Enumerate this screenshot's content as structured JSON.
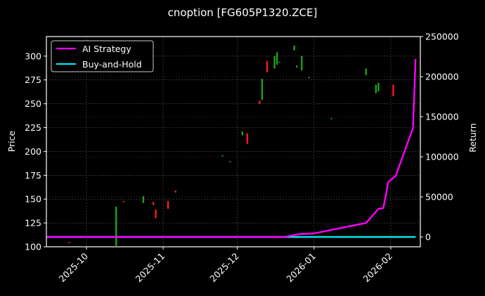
{
  "title": "cnoption [FG605P1320.ZCE]",
  "colors": {
    "background": "#000000",
    "ai_strategy": "#ff00ff",
    "buy_and_hold": "#00e5ee",
    "candle_up": "#1fa01f",
    "candle_down": "#ff1a1a",
    "grid": "#555555",
    "axis": "#ffffff"
  },
  "legend": {
    "items": [
      {
        "label": "AI Strategy",
        "color": "#ff00ff"
      },
      {
        "label": "Buy-and-Hold",
        "color": "#00e5ee"
      }
    ]
  },
  "chart_data": {
    "type": "line",
    "title": "cnoption [FG605P1320.ZCE]",
    "xlabel": "",
    "ylabel": "Price",
    "y2label": "Return",
    "xlim": [
      "2025-09-15",
      "2026-02-11"
    ],
    "ylim": [
      100,
      320
    ],
    "y2lim": [
      -12000,
      250000
    ],
    "grid": true,
    "legend_position": "upper left",
    "x_ticks": [
      "2025-10",
      "2025-11",
      "2025-12",
      "2026-01",
      "2026-02"
    ],
    "y_ticks": [
      100,
      125,
      150,
      175,
      200,
      225,
      250,
      275,
      300
    ],
    "y2_ticks": [
      0,
      50000,
      100000,
      150000,
      200000,
      250000
    ],
    "candles": [
      {
        "date": "2025-09-24",
        "open": 105,
        "close": 104,
        "high": 105,
        "low": 104
      },
      {
        "date": "2025-10-13",
        "open": 101,
        "close": 142,
        "high": 142,
        "low": 101
      },
      {
        "date": "2025-10-16",
        "open": 148,
        "close": 147,
        "high": 148,
        "low": 147
      },
      {
        "date": "2025-10-24",
        "open": 146,
        "close": 153,
        "high": 153,
        "low": 146
      },
      {
        "date": "2025-10-28",
        "open": 147,
        "close": 144,
        "high": 147,
        "low": 144
      },
      {
        "date": "2025-10-29",
        "open": 139,
        "close": 130,
        "high": 139,
        "low": 130
      },
      {
        "date": "2025-11-03",
        "open": 148,
        "close": 140,
        "high": 148,
        "low": 140
      },
      {
        "date": "2025-11-06",
        "open": 159,
        "close": 157,
        "high": 159,
        "low": 157
      },
      {
        "date": "2025-11-25",
        "open": 196,
        "close": 196,
        "high": 196,
        "low": 196
      },
      {
        "date": "2025-11-28",
        "open": 190,
        "close": 190,
        "high": 190,
        "low": 190
      },
      {
        "date": "2025-12-03",
        "open": 217,
        "close": 221,
        "high": 221,
        "low": 217
      },
      {
        "date": "2025-12-05",
        "open": 219,
        "close": 208,
        "high": 219,
        "low": 208
      },
      {
        "date": "2025-12-10",
        "open": 253,
        "close": 250,
        "high": 253,
        "low": 250
      },
      {
        "date": "2025-12-11",
        "open": 254,
        "close": 276,
        "high": 276,
        "low": 254
      },
      {
        "date": "2025-12-13",
        "open": 295,
        "close": 283,
        "high": 295,
        "low": 283
      },
      {
        "date": "2025-12-16",
        "open": 287,
        "close": 300,
        "high": 300,
        "low": 287
      },
      {
        "date": "2025-12-17",
        "open": 291,
        "close": 304,
        "high": 304,
        "low": 291
      },
      {
        "date": "2025-12-18",
        "open": 293,
        "close": 294,
        "high": 294,
        "low": 293
      },
      {
        "date": "2025-12-24",
        "open": 306,
        "close": 311,
        "high": 311,
        "low": 306
      },
      {
        "date": "2025-12-25",
        "open": 288,
        "close": 290,
        "high": 290,
        "low": 288
      },
      {
        "date": "2025-12-27",
        "open": 285,
        "close": 300,
        "high": 300,
        "low": 285
      },
      {
        "date": "2025-12-30",
        "open": 278,
        "close": 278,
        "high": 278,
        "low": 278
      },
      {
        "date": "2026-01-08",
        "open": 235,
        "close": 235,
        "high": 235,
        "low": 235
      },
      {
        "date": "2026-01-22",
        "open": 280,
        "close": 287,
        "high": 287,
        "low": 280
      },
      {
        "date": "2026-01-26",
        "open": 261,
        "close": 270,
        "high": 270,
        "low": 261
      },
      {
        "date": "2026-01-27",
        "open": 263,
        "close": 272,
        "high": 272,
        "low": 263
      },
      {
        "date": "2026-02-02",
        "open": 270,
        "close": 258,
        "high": 270,
        "low": 258
      }
    ],
    "series": [
      {
        "name": "AI Strategy",
        "axis": "Return",
        "x": [
          "2025-09-15",
          "2025-12-20",
          "2025-12-26",
          "2026-01-01",
          "2026-01-08",
          "2026-01-22",
          "2026-01-27",
          "2026-01-29",
          "2026-01-31",
          "2026-02-03",
          "2026-02-10",
          "2026-02-11"
        ],
        "values": [
          0,
          0,
          3500,
          4400,
          8800,
          17500,
          35000,
          36000,
          68400,
          76300,
          136000,
          222000
        ]
      },
      {
        "name": "Buy-and-Hold",
        "axis": "Return",
        "x": [
          "2025-09-15",
          "2026-02-11"
        ],
        "values": [
          0,
          0
        ]
      }
    ]
  }
}
